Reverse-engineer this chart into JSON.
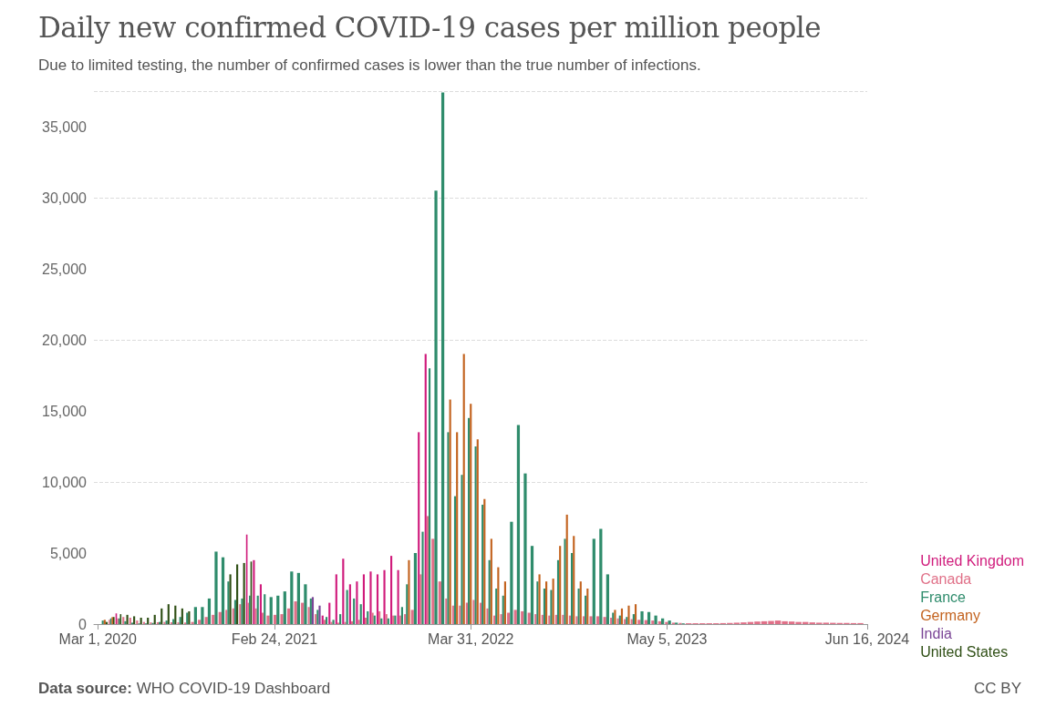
{
  "chart_data": {
    "type": "bar",
    "title": "Daily new confirmed COVID-19 cases per million people",
    "subtitle": "Due to limited testing, the number of confirmed cases is lower than the true number of infections.",
    "annotations": [
      "Data source: WHO COVID-19 Dashboard",
      "CC BY"
    ],
    "x": [
      "2020-03-15",
      "2020-03-29",
      "2020-04-12",
      "2020-04-26",
      "2020-05-10",
      "2020-05-24",
      "2020-06-07",
      "2020-06-21",
      "2020-07-05",
      "2020-07-19",
      "2020-08-02",
      "2020-08-16",
      "2020-08-30",
      "2020-09-13",
      "2020-09-27",
      "2020-10-11",
      "2020-10-25",
      "2020-11-08",
      "2020-11-22",
      "2020-12-06",
      "2020-12-20",
      "2021-01-03",
      "2021-01-17",
      "2021-01-31",
      "2021-02-14",
      "2021-02-28",
      "2021-03-14",
      "2021-03-28",
      "2021-04-11",
      "2021-04-25",
      "2021-05-09",
      "2021-05-23",
      "2021-06-06",
      "2021-06-20",
      "2021-07-04",
      "2021-07-18",
      "2021-08-01",
      "2021-08-15",
      "2021-08-29",
      "2021-09-12",
      "2021-09-26",
      "2021-10-10",
      "2021-10-24",
      "2021-11-07",
      "2021-11-21",
      "2021-12-05",
      "2021-12-19",
      "2022-01-02",
      "2022-01-16",
      "2022-01-30",
      "2022-02-13",
      "2022-02-27",
      "2022-03-13",
      "2022-03-27",
      "2022-04-10",
      "2022-04-24",
      "2022-05-08",
      "2022-05-22",
      "2022-06-05",
      "2022-06-19",
      "2022-07-03",
      "2022-07-17",
      "2022-07-31",
      "2022-08-14",
      "2022-08-28",
      "2022-09-11",
      "2022-09-25",
      "2022-10-09",
      "2022-10-23",
      "2022-11-06",
      "2022-11-20",
      "2022-12-04",
      "2022-12-18",
      "2023-01-01",
      "2023-01-15",
      "2023-01-29",
      "2023-02-12",
      "2023-02-26",
      "2023-03-12",
      "2023-03-26",
      "2023-04-09",
      "2023-04-23",
      "2023-05-07",
      "2023-05-21",
      "2023-06-04",
      "2023-06-18",
      "2023-07-02",
      "2023-07-16",
      "2023-07-30",
      "2023-08-13",
      "2023-08-27",
      "2023-09-10",
      "2023-09-24",
      "2023-10-08",
      "2023-10-22",
      "2023-11-05",
      "2023-11-19",
      "2023-12-03",
      "2023-12-17",
      "2023-12-31",
      "2024-01-14",
      "2024-01-28",
      "2024-02-11",
      "2024-02-25",
      "2024-03-10",
      "2024-03-24",
      "2024-04-07",
      "2024-04-21",
      "2024-05-05",
      "2024-05-19",
      "2024-06-02"
    ],
    "series": [
      {
        "name": "United Kingdom",
        "color": "#d01c7c",
        "values": [
          null,
          null,
          750,
          null,
          null,
          null,
          null,
          null,
          null,
          null,
          null,
          null,
          null,
          null,
          null,
          null,
          null,
          null,
          null,
          null,
          null,
          6300,
          4500,
          2800,
          null,
          null,
          null,
          null,
          null,
          null,
          null,
          null,
          600,
          1500,
          3500,
          4600,
          2800,
          3000,
          3500,
          3700,
          3500,
          3800,
          4800,
          3800,
          null,
          null,
          13500,
          19000,
          null,
          null,
          null,
          null,
          null,
          null,
          null,
          null,
          null,
          null,
          null,
          null,
          null,
          null,
          null,
          null,
          null,
          null,
          null,
          null,
          null,
          null,
          null,
          null,
          null,
          null,
          null,
          null,
          null,
          null,
          null,
          null,
          null,
          null,
          null,
          null,
          null,
          null,
          null,
          null,
          null,
          null,
          null,
          null,
          null,
          null,
          null,
          null,
          null,
          null,
          null,
          null,
          null,
          null,
          null,
          null,
          null,
          null,
          null,
          null,
          null,
          null,
          null
        ]
      },
      {
        "name": "Canada",
        "color": "#e07088",
        "values": [
          null,
          300,
          400,
          500,
          450,
          250,
          150,
          120,
          130,
          150,
          130,
          120,
          110,
          150,
          300,
          500,
          650,
          850,
          1000,
          1100,
          1400,
          1500,
          1100,
          800,
          600,
          650,
          700,
          1100,
          1600,
          1500,
          1200,
          700,
          300,
          150,
          100,
          150,
          200,
          300,
          450,
          800,
          900,
          700,
          600,
          600,
          700,
          1000,
          3500,
          7600,
          6000,
          3000,
          1800,
          1300,
          1300,
          1500,
          1700,
          1500,
          1100,
          600,
          700,
          800,
          1000,
          900,
          800,
          700,
          650,
          600,
          650,
          650,
          600,
          550,
          550,
          550,
          550,
          500,
          450,
          400,
          350,
          350,
          300,
          280,
          250,
          200,
          150,
          100,
          80,
          60,
          60,
          60,
          60,
          60,
          70,
          80,
          100,
          120,
          150,
          180,
          200,
          220,
          250,
          200,
          180,
          150,
          150,
          120,
          100,
          100,
          90,
          80,
          80,
          70,
          70
        ]
      },
      {
        "name": "France",
        "color": "#2f8c6c",
        "values": [
          250,
          400,
          400,
          200,
          100,
          50,
          50,
          80,
          150,
          250,
          350,
          500,
          800,
          1200,
          1200,
          1800,
          5100,
          4700,
          3000,
          1700,
          1800,
          2000,
          2000,
          2100,
          1900,
          2000,
          2300,
          3700,
          3600,
          2800,
          1800,
          1000,
          500,
          300,
          700,
          2400,
          1800,
          1400,
          900,
          600,
          400,
          400,
          600,
          1200,
          2800,
          5000,
          6500,
          18000,
          30500,
          37400,
          13500,
          9000,
          10500,
          14500,
          12500,
          8400,
          4500,
          2500,
          2000,
          7200,
          14000,
          10600,
          5500,
          3000,
          2500,
          2400,
          4500,
          6000,
          5000,
          2500,
          2000,
          6000,
          6700,
          3500,
          800,
          600,
          500,
          700,
          900,
          850,
          600,
          400,
          250,
          100,
          50,
          null,
          null,
          null,
          null,
          null,
          null,
          null,
          null,
          null,
          null,
          null,
          null,
          null,
          null,
          null,
          null,
          null,
          null,
          null,
          null,
          null,
          null,
          null,
          null,
          null,
          null
        ]
      },
      {
        "name": "Germany",
        "color": "#c3631f",
        "values": [
          300,
          500,
          null,
          null,
          null,
          null,
          null,
          null,
          null,
          null,
          null,
          null,
          null,
          null,
          null,
          null,
          null,
          null,
          null,
          null,
          null,
          null,
          null,
          null,
          null,
          null,
          null,
          null,
          null,
          null,
          null,
          null,
          null,
          null,
          null,
          null,
          null,
          null,
          null,
          null,
          null,
          null,
          null,
          null,
          4500,
          null,
          null,
          null,
          null,
          null,
          15800,
          13500,
          19000,
          15500,
          13000,
          8800,
          6000,
          4000,
          3000,
          null,
          null,
          null,
          null,
          3500,
          3000,
          3200,
          5500,
          7700,
          6200,
          3000,
          2500,
          null,
          null,
          null,
          1000,
          1100,
          1300,
          1400,
          null,
          null,
          null,
          null,
          null,
          null,
          null,
          null,
          null,
          null,
          null,
          null,
          null,
          null,
          null,
          null,
          null,
          null,
          null,
          null,
          null,
          null,
          null,
          null,
          null,
          null,
          null,
          null,
          null,
          null,
          null,
          null,
          null
        ]
      },
      {
        "name": "India",
        "color": "#7a4596",
        "values": [
          null,
          null,
          null,
          null,
          null,
          null,
          null,
          null,
          null,
          null,
          null,
          null,
          null,
          null,
          null,
          null,
          null,
          null,
          null,
          null,
          null,
          null,
          null,
          null,
          null,
          null,
          null,
          null,
          null,
          null,
          1900,
          1300,
          null,
          null,
          null,
          null,
          null,
          null,
          null,
          null,
          null,
          null,
          null,
          null,
          null,
          null,
          null,
          null,
          null,
          null,
          null,
          null,
          null,
          null,
          null,
          null,
          null,
          null,
          null,
          null,
          null,
          null,
          null,
          null,
          null,
          null,
          null,
          null,
          null,
          null,
          null,
          null,
          null,
          null,
          null,
          null,
          null,
          null,
          null,
          null,
          null,
          null,
          null,
          null,
          null,
          null,
          null,
          null,
          null,
          null,
          null,
          null,
          null,
          null,
          null,
          null,
          null,
          null,
          null,
          null,
          null,
          null,
          null,
          null,
          null,
          null,
          null,
          null,
          null,
          null,
          null
        ]
      },
      {
        "name": "United States",
        "color": "#2f4f15",
        "values": [
          150,
          500,
          700,
          650,
          550,
          450,
          450,
          650,
          1100,
          1400,
          1300,
          1100,
          900,
          null,
          null,
          null,
          null,
          null,
          3500,
          4200,
          4300,
          4400,
          null,
          null,
          null,
          null,
          null,
          null,
          null,
          null,
          null,
          null,
          null,
          null,
          null,
          null,
          null,
          null,
          null,
          null,
          null,
          null,
          null,
          null,
          null,
          null,
          null,
          null,
          null,
          null,
          null,
          null,
          null,
          null,
          null,
          null,
          null,
          null,
          null,
          null,
          null,
          null,
          null,
          null,
          null,
          null,
          null,
          null,
          null,
          null,
          null,
          null,
          null,
          null,
          null,
          null,
          null,
          null,
          null,
          null,
          null,
          null,
          null,
          null,
          null,
          null,
          null,
          null,
          null,
          null,
          null,
          null,
          null,
          null,
          null,
          null,
          null,
          null,
          null,
          null,
          null,
          null,
          null,
          null,
          null,
          null,
          null,
          null,
          null,
          null,
          null
        ]
      }
    ],
    "xlim": [
      "2020-02-22",
      "2024-06-16"
    ],
    "xticks": [
      {
        "value": "2020-03-01",
        "label": "Mar 1, 2020"
      },
      {
        "value": "2021-02-24",
        "label": "Feb 24, 2021"
      },
      {
        "value": "2022-03-31",
        "label": "Mar 31, 2022"
      },
      {
        "value": "2023-05-05",
        "label": "May 5, 2023"
      },
      {
        "value": "2024-06-16",
        "label": "Jun 16, 2024"
      }
    ],
    "ylim": [
      0,
      37500
    ],
    "yticks": [
      0,
      {
        "value": 5000,
        "label": "5,000"
      },
      {
        "value": 10000,
        "label": "10,000"
      },
      {
        "value": 15000,
        "label": "15,000"
      },
      {
        "value": 20000,
        "label": "20,000"
      },
      {
        "value": 25000,
        "label": "25,000"
      },
      {
        "value": 30000,
        "label": "30,000"
      },
      {
        "value": 35000,
        "label": "35,000"
      }
    ],
    "grid": "y",
    "legend": "right"
  }
}
